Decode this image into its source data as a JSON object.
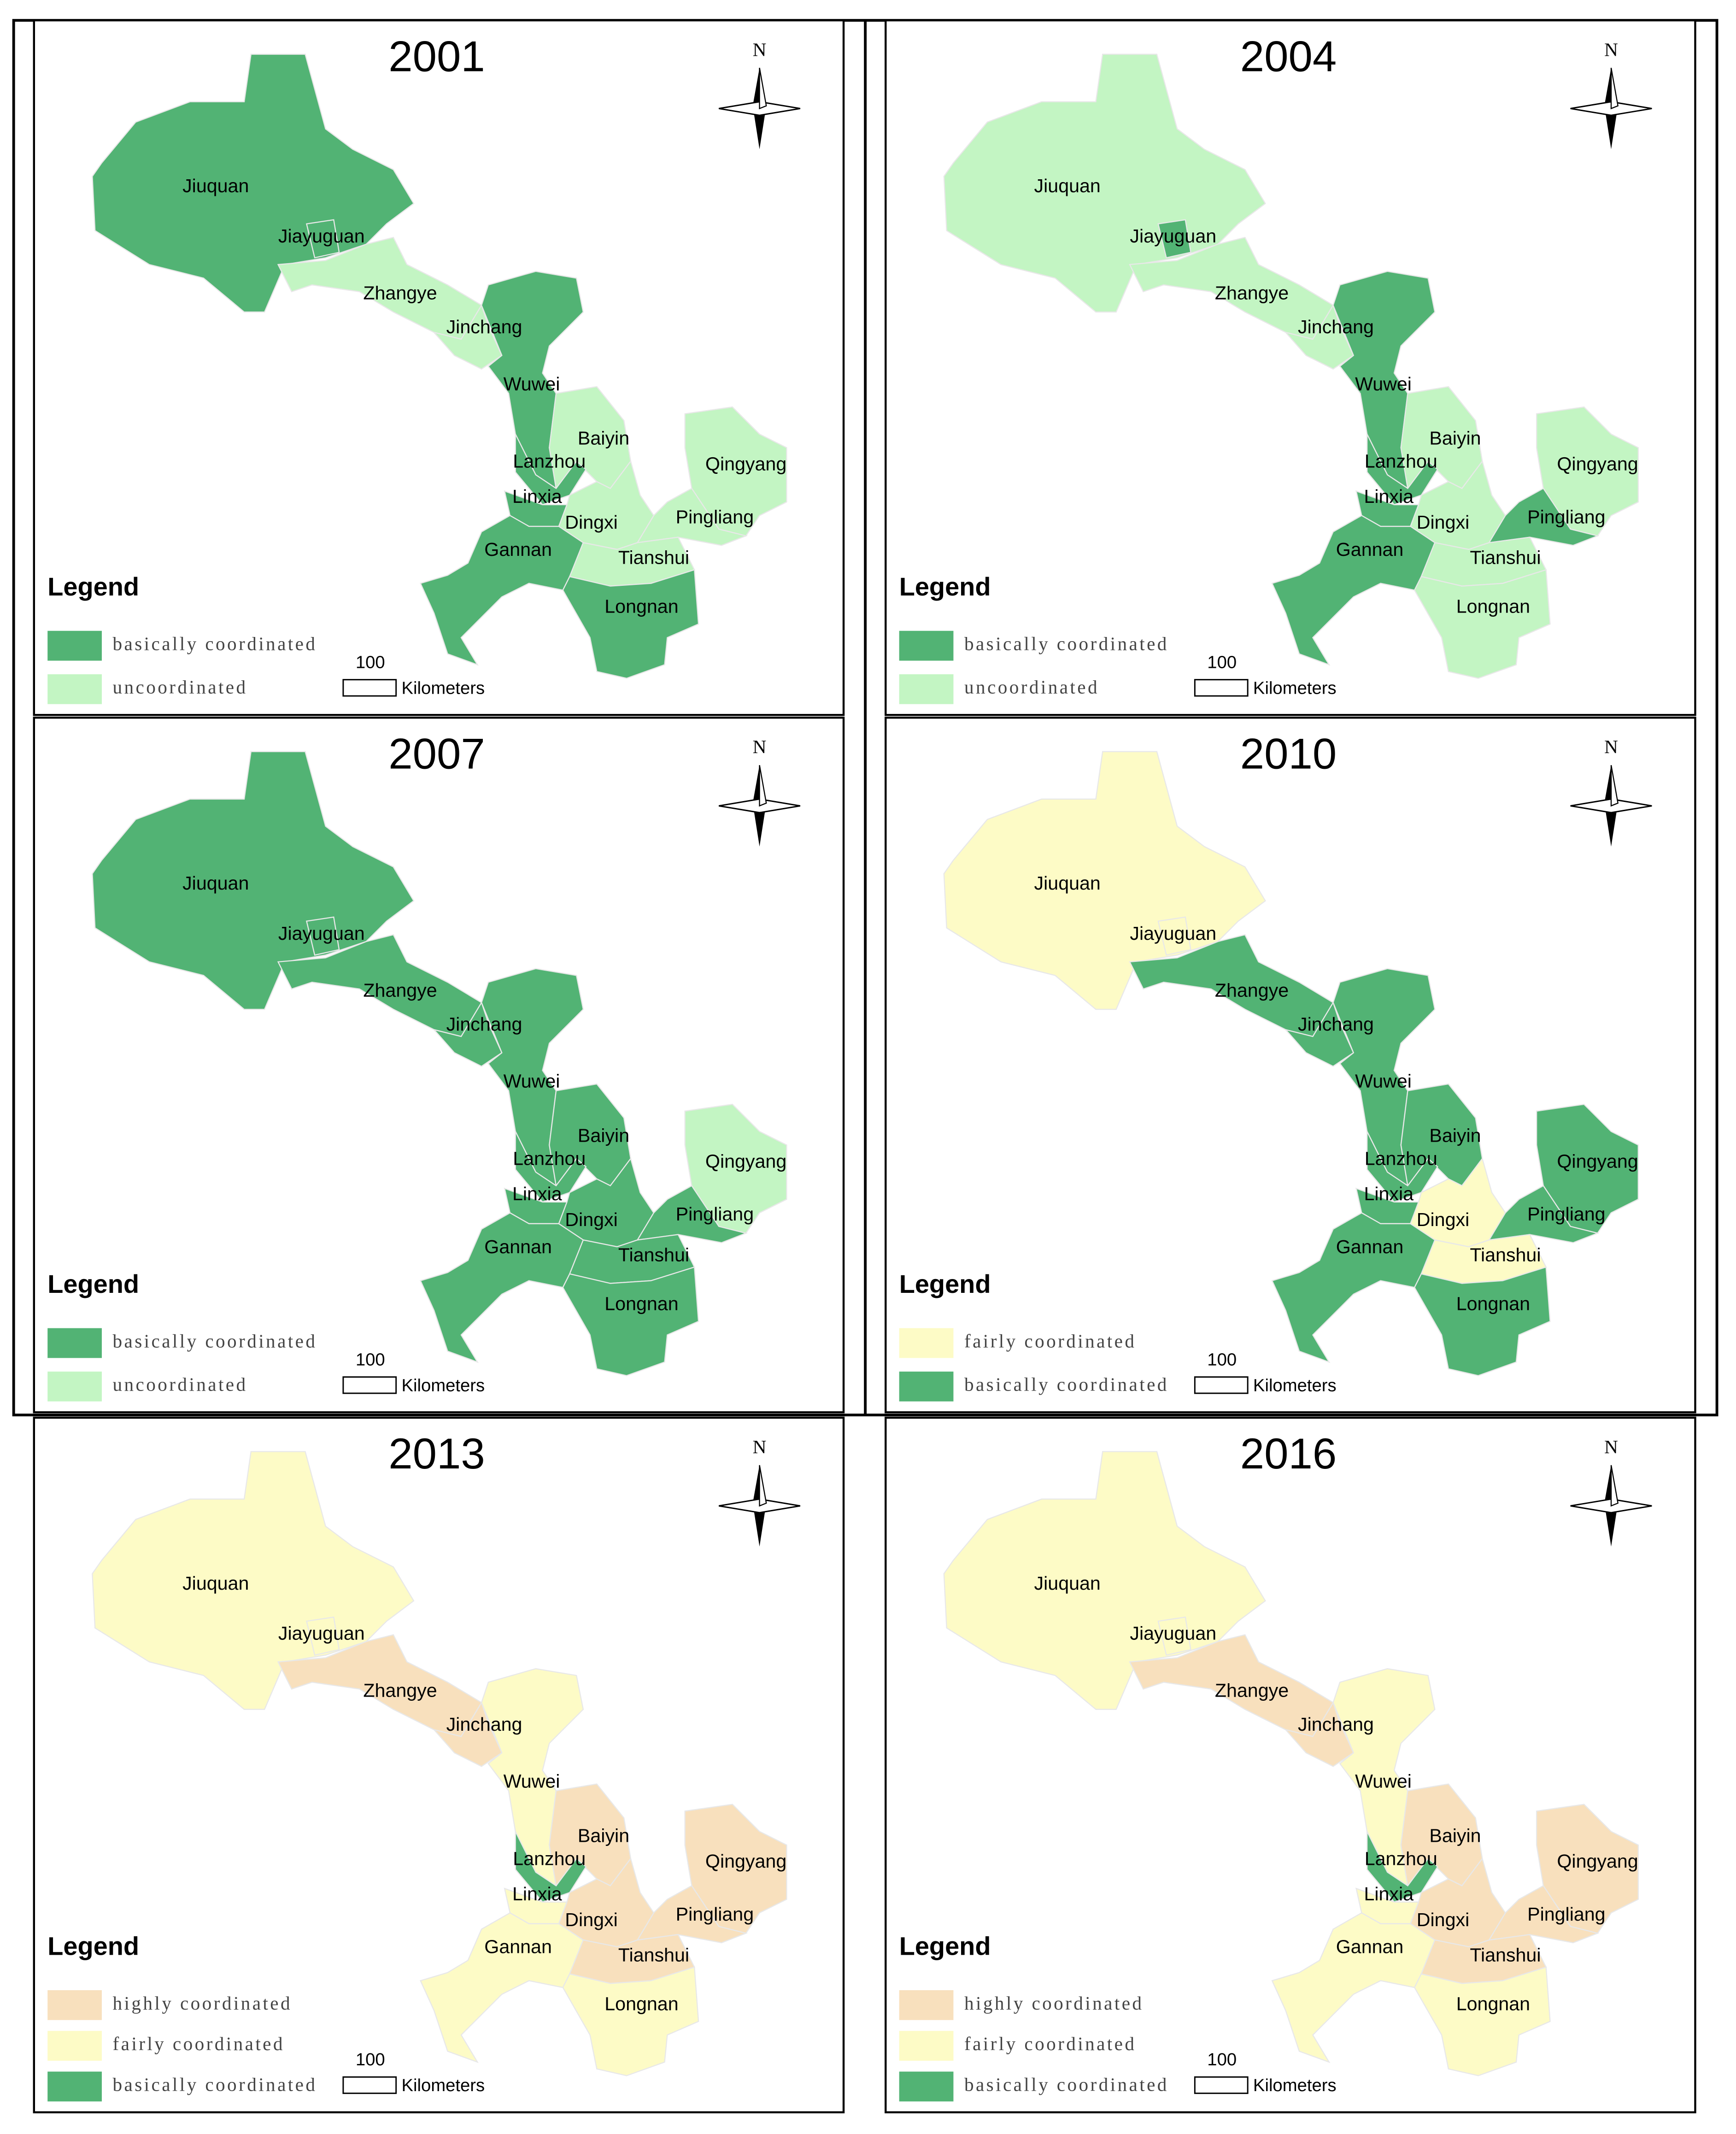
{
  "panels": [
    {
      "year": "2001",
      "north": "N",
      "legend_title": "Legend",
      "scale": 100,
      "scale_unit": "Kilometers",
      "legend": [
        {
          "label": "basically coordinated",
          "color": "#52b374"
        },
        {
          "label": "uncoordinated",
          "color": "#c3f5c3"
        }
      ],
      "regions": [
        {
          "name": "Jiuquan",
          "category": "basically coordinated"
        },
        {
          "name": "Jiayuguan",
          "category": "basically coordinated"
        },
        {
          "name": "Zhangye",
          "category": "uncoordinated"
        },
        {
          "name": "Jinchang",
          "category": "uncoordinated"
        },
        {
          "name": "Wuwei",
          "category": "basically coordinated"
        },
        {
          "name": "Baiyin",
          "category": "uncoordinated"
        },
        {
          "name": "Lanzhou",
          "category": "basically coordinated"
        },
        {
          "name": "Linxia",
          "category": "basically coordinated"
        },
        {
          "name": "Dingxi",
          "category": "uncoordinated"
        },
        {
          "name": "Qingyang",
          "category": "uncoordinated"
        },
        {
          "name": "Pingliang",
          "category": "uncoordinated"
        },
        {
          "name": "Gannan",
          "category": "basically coordinated"
        },
        {
          "name": "Tianshui",
          "category": "uncoordinated"
        },
        {
          "name": "Longnan",
          "category": "basically coordinated"
        }
      ]
    },
    {
      "year": "2004",
      "north": "N",
      "legend_title": "Legend",
      "scale": 100,
      "scale_unit": "Kilometers",
      "legend": [
        {
          "label": "basically coordinated",
          "color": "#52b374"
        },
        {
          "label": "uncoordinated",
          "color": "#c3f5c3"
        }
      ],
      "regions": [
        {
          "name": "Jiuquan",
          "category": "uncoordinated"
        },
        {
          "name": "Jiayuguan",
          "category": "basically coordinated"
        },
        {
          "name": "Zhangye",
          "category": "uncoordinated"
        },
        {
          "name": "Jinchang",
          "category": "uncoordinated"
        },
        {
          "name": "Wuwei",
          "category": "basically coordinated"
        },
        {
          "name": "Baiyin",
          "category": "uncoordinated"
        },
        {
          "name": "Lanzhou",
          "category": "basically coordinated"
        },
        {
          "name": "Linxia",
          "category": "basically coordinated"
        },
        {
          "name": "Dingxi",
          "category": "uncoordinated"
        },
        {
          "name": "Qingyang",
          "category": "uncoordinated"
        },
        {
          "name": "Pingliang",
          "category": "basically coordinated"
        },
        {
          "name": "Gannan",
          "category": "basically coordinated"
        },
        {
          "name": "Tianshui",
          "category": "uncoordinated"
        },
        {
          "name": "Longnan",
          "category": "uncoordinated"
        }
      ]
    },
    {
      "year": "2007",
      "north": "N",
      "legend_title": "Legend",
      "scale": 100,
      "scale_unit": "Kilometers",
      "legend": [
        {
          "label": "basically coordinated",
          "color": "#52b374"
        },
        {
          "label": "uncoordinated",
          "color": "#c3f5c3"
        }
      ],
      "regions": [
        {
          "name": "Jiuquan",
          "category": "basically coordinated"
        },
        {
          "name": "Jiayuguan",
          "category": "basically coordinated"
        },
        {
          "name": "Zhangye",
          "category": "basically coordinated"
        },
        {
          "name": "Jinchang",
          "category": "basically coordinated"
        },
        {
          "name": "Wuwei",
          "category": "basically coordinated"
        },
        {
          "name": "Baiyin",
          "category": "basically coordinated"
        },
        {
          "name": "Lanzhou",
          "category": "basically coordinated"
        },
        {
          "name": "Linxia",
          "category": "basically coordinated"
        },
        {
          "name": "Dingxi",
          "category": "basically coordinated"
        },
        {
          "name": "Qingyang",
          "category": "uncoordinated"
        },
        {
          "name": "Pingliang",
          "category": "basically coordinated"
        },
        {
          "name": "Gannan",
          "category": "basically coordinated"
        },
        {
          "name": "Tianshui",
          "category": "basically coordinated"
        },
        {
          "name": "Longnan",
          "category": "basically coordinated"
        }
      ]
    },
    {
      "year": "2010",
      "north": "N",
      "legend_title": "Legend",
      "scale": 100,
      "scale_unit": "Kilometers",
      "legend": [
        {
          "label": "fairly coordinated",
          "color": "#fdfbc6"
        },
        {
          "label": "basically coordinated",
          "color": "#52b374"
        }
      ],
      "regions": [
        {
          "name": "Jiuquan",
          "category": "fairly coordinated"
        },
        {
          "name": "Jiayuguan",
          "category": "fairly coordinated"
        },
        {
          "name": "Zhangye",
          "category": "basically coordinated"
        },
        {
          "name": "Jinchang",
          "category": "basically coordinated"
        },
        {
          "name": "Wuwei",
          "category": "basically coordinated"
        },
        {
          "name": "Baiyin",
          "category": "basically coordinated"
        },
        {
          "name": "Lanzhou",
          "category": "basically coordinated"
        },
        {
          "name": "Linxia",
          "category": "basically coordinated"
        },
        {
          "name": "Dingxi",
          "category": "fairly coordinated"
        },
        {
          "name": "Qingyang",
          "category": "basically coordinated"
        },
        {
          "name": "Pingliang",
          "category": "basically coordinated"
        },
        {
          "name": "Gannan",
          "category": "basically coordinated"
        },
        {
          "name": "Tianshui",
          "category": "fairly coordinated"
        },
        {
          "name": "Longnan",
          "category": "basically coordinated"
        }
      ]
    },
    {
      "year": "2013",
      "north": "N",
      "legend_title": "Legend",
      "scale": 100,
      "scale_unit": "Kilometers",
      "legend": [
        {
          "label": "highly coordinated",
          "color": "#f8e0bd"
        },
        {
          "label": "fairly coordinated",
          "color": "#fdfbc6"
        },
        {
          "label": "basically coordinated",
          "color": "#52b374"
        }
      ],
      "regions": [
        {
          "name": "Jiuquan",
          "category": "fairly coordinated"
        },
        {
          "name": "Jiayuguan",
          "category": "fairly coordinated"
        },
        {
          "name": "Zhangye",
          "category": "highly coordinated"
        },
        {
          "name": "Jinchang",
          "category": "highly coordinated"
        },
        {
          "name": "Wuwei",
          "category": "fairly coordinated"
        },
        {
          "name": "Baiyin",
          "category": "highly coordinated"
        },
        {
          "name": "Lanzhou",
          "category": "basically coordinated"
        },
        {
          "name": "Linxia",
          "category": "fairly coordinated"
        },
        {
          "name": "Dingxi",
          "category": "highly coordinated"
        },
        {
          "name": "Qingyang",
          "category": "highly coordinated"
        },
        {
          "name": "Pingliang",
          "category": "highly coordinated"
        },
        {
          "name": "Gannan",
          "category": "fairly coordinated"
        },
        {
          "name": "Tianshui",
          "category": "highly coordinated"
        },
        {
          "name": "Longnan",
          "category": "fairly coordinated"
        }
      ]
    },
    {
      "year": "2016",
      "north": "N",
      "legend_title": "Legend",
      "scale": 100,
      "scale_unit": "Kilometers",
      "legend": [
        {
          "label": "highly coordinated",
          "color": "#f8e0bd"
        },
        {
          "label": "fairly coordinated",
          "color": "#fdfbc6"
        },
        {
          "label": "basically coordinated",
          "color": "#52b374"
        }
      ],
      "regions": [
        {
          "name": "Jiuquan",
          "category": "fairly coordinated"
        },
        {
          "name": "Jiayuguan",
          "category": "fairly coordinated"
        },
        {
          "name": "Zhangye",
          "category": "highly coordinated"
        },
        {
          "name": "Jinchang",
          "category": "highly coordinated"
        },
        {
          "name": "Wuwei",
          "category": "fairly coordinated"
        },
        {
          "name": "Baiyin",
          "category": "highly coordinated"
        },
        {
          "name": "Lanzhou",
          "category": "basically coordinated"
        },
        {
          "name": "Linxia",
          "category": "fairly coordinated"
        },
        {
          "name": "Dingxi",
          "category": "highly coordinated"
        },
        {
          "name": "Qingyang",
          "category": "highly coordinated"
        },
        {
          "name": "Pingliang",
          "category": "highly coordinated"
        },
        {
          "name": "Gannan",
          "category": "fairly coordinated"
        },
        {
          "name": "Tianshui",
          "category": "highly coordinated"
        },
        {
          "name": "Longnan",
          "category": "fairly coordinated"
        }
      ]
    }
  ]
}
